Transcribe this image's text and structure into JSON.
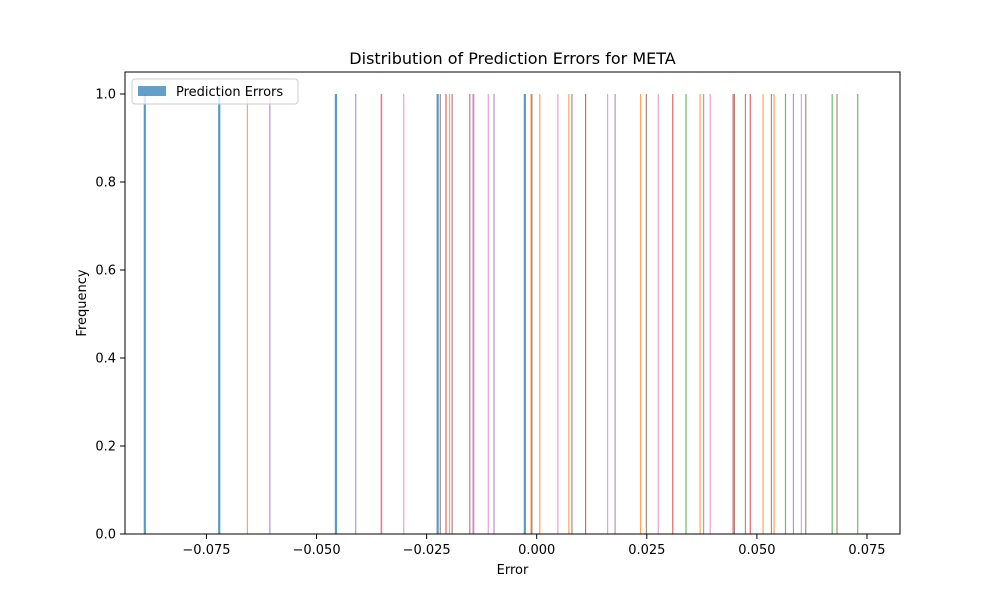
{
  "chart_data": {
    "type": "bar",
    "title": "Distribution of Prediction Errors for META",
    "xlabel": "Error",
    "ylabel": "Frequency",
    "xlim": [
      -0.0935,
      0.0825
    ],
    "ylim": [
      0,
      1.05
    ],
    "x_ticks": [
      -0.075,
      -0.05,
      -0.025,
      0.0,
      0.025,
      0.05,
      0.075
    ],
    "x_tick_labels": [
      "−0.075",
      "−0.050",
      "−0.025",
      "0.000",
      "0.025",
      "0.050",
      "0.075"
    ],
    "y_ticks": [
      0.0,
      0.2,
      0.4,
      0.6,
      0.8,
      1.0
    ],
    "y_tick_labels": [
      "0.0",
      "0.2",
      "0.4",
      "0.6",
      "0.8",
      "1.0"
    ],
    "grid": false,
    "legend": {
      "position": "top-left",
      "entries": [
        {
          "label": "Prediction Errors",
          "color": "#1f77b4"
        }
      ]
    },
    "series": [
      {
        "color": "#1f77b4",
        "values": [
          {
            "x": -0.089,
            "y": 1
          },
          {
            "x": -0.0721,
            "y": 1
          },
          {
            "x": -0.0456,
            "y": 1
          },
          {
            "x": -0.0225,
            "y": 1
          },
          {
            "x": -0.0027,
            "y": 1
          }
        ]
      },
      {
        "color": "#ff7f0e",
        "values": [
          {
            "x": -0.0657,
            "y": 1
          },
          {
            "x": -0.0198,
            "y": 1
          },
          {
            "x": -0.0013,
            "y": 1
          },
          {
            "x": 0.0007,
            "y": 1
          },
          {
            "x": 0.0073,
            "y": 1
          },
          {
            "x": 0.0236,
            "y": 1
          },
          {
            "x": 0.0371,
            "y": 1
          },
          {
            "x": 0.0514,
            "y": 1
          },
          {
            "x": 0.0539,
            "y": 1
          }
        ]
      },
      {
        "color": "#2ca02c",
        "values": [
          {
            "x": 0.0339,
            "y": 1
          },
          {
            "x": 0.0565,
            "y": 1
          },
          {
            "x": 0.0671,
            "y": 1
          },
          {
            "x": 0.0729,
            "y": 1
          }
        ]
      },
      {
        "color": "#d62728",
        "values": [
          {
            "x": -0.0353,
            "y": 1
          },
          {
            "x": -0.0206,
            "y": 1
          },
          {
            "x": 0.0111,
            "y": 1
          },
          {
            "x": 0.0309,
            "y": 1
          },
          {
            "x": 0.0446,
            "y": 1
          },
          {
            "x": 0.0485,
            "y": 1
          }
        ]
      },
      {
        "color": "#9467bd",
        "values": [
          {
            "x": -0.0606,
            "y": 1
          },
          {
            "x": -0.0411,
            "y": 1
          },
          {
            "x": -0.0143,
            "y": 1
          },
          {
            "x": -0.0097,
            "y": 1
          },
          {
            "x": 0.0178,
            "y": 1
          },
          {
            "x": 0.0379,
            "y": 1
          },
          {
            "x": 0.0583,
            "y": 1
          }
        ]
      },
      {
        "color": "#8c564b",
        "values": [
          {
            "x": -0.0219,
            "y": 1
          },
          {
            "x": -0.0192,
            "y": 1
          },
          {
            "x": -0.0152,
            "y": 1
          },
          {
            "x": -0.0011,
            "y": 1
          },
          {
            "x": 0.008,
            "y": 1
          },
          {
            "x": 0.0249,
            "y": 1
          },
          {
            "x": 0.0449,
            "y": 1
          },
          {
            "x": 0.0474,
            "y": 1
          },
          {
            "x": 0.0533,
            "y": 1
          },
          {
            "x": 0.0611,
            "y": 1
          },
          {
            "x": 0.0682,
            "y": 1
          }
        ]
      },
      {
        "color": "#e377c2",
        "values": [
          {
            "x": -0.0352,
            "y": 1
          },
          {
            "x": -0.0302,
            "y": 1
          },
          {
            "x": -0.0145,
            "y": 1
          },
          {
            "x": -0.011,
            "y": 1
          },
          {
            "x": 0.0048,
            "y": 1
          },
          {
            "x": 0.0161,
            "y": 1
          },
          {
            "x": 0.0276,
            "y": 1
          },
          {
            "x": 0.0394,
            "y": 1
          },
          {
            "x": 0.0601,
            "y": 1
          }
        ]
      }
    ]
  }
}
